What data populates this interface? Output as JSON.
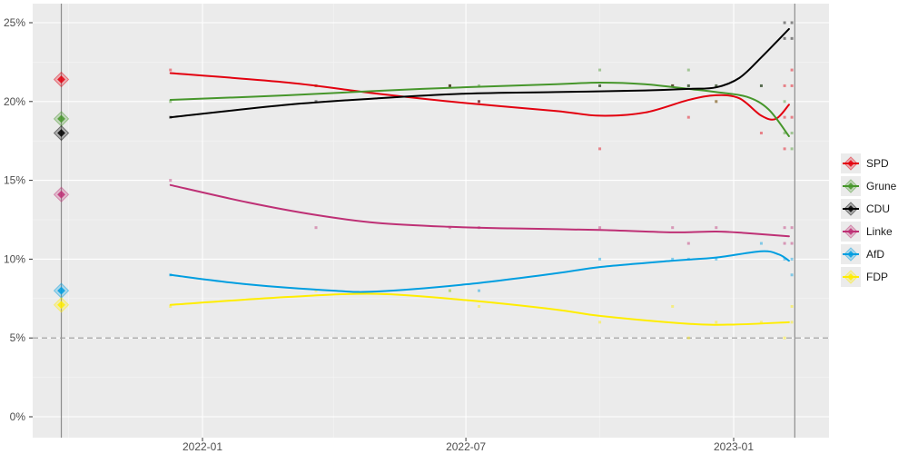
{
  "chart_data": {
    "type": "line",
    "title": "",
    "xlabel": "",
    "ylabel": "",
    "ylim": [
      0,
      26
    ],
    "xlim": [
      "2021-09-01",
      "2023-03-15"
    ],
    "y_ticks": [
      0,
      5,
      10,
      15,
      20,
      25
    ],
    "y_tick_labels": [
      "0%",
      "5%",
      "10%",
      "15%",
      "20%",
      "25%"
    ],
    "x_ticks": [
      "2022-01-01",
      "2022-07-01",
      "2023-01-01"
    ],
    "x_tick_labels": [
      "2022-01",
      "2022-07",
      "2023-01"
    ],
    "grid": true,
    "threshold": {
      "value": 5,
      "style": "dashed"
    },
    "reference_lines": [
      {
        "date": "2021-09-26"
      },
      {
        "date": "2023-02-12"
      }
    ],
    "legend": {
      "position": "right"
    },
    "series": [
      {
        "name": "SPD",
        "color": "#e3000f",
        "previous_result": 21.4,
        "trend": [
          [
            "2021-12-10",
            21.8
          ],
          [
            "2022-03-01",
            21.2
          ],
          [
            "2022-05-01",
            20.5
          ],
          [
            "2022-07-01",
            19.9
          ],
          [
            "2022-09-01",
            19.4
          ],
          [
            "2022-10-01",
            19.1
          ],
          [
            "2022-11-01",
            19.3
          ],
          [
            "2022-12-01",
            20.1
          ],
          [
            "2022-12-20",
            20.4
          ],
          [
            "2023-01-05",
            20.2
          ],
          [
            "2023-01-20",
            19.1
          ],
          [
            "2023-01-30",
            18.9
          ],
          [
            "2023-02-08",
            19.8
          ]
        ],
        "polls": [
          [
            "2021-12-10",
            22
          ],
          [
            "2022-03-20",
            21
          ],
          [
            "2022-06-20",
            21
          ],
          [
            "2022-07-10",
            20
          ],
          [
            "2022-10-01",
            17
          ],
          [
            "2022-11-20",
            21
          ],
          [
            "2022-12-01",
            19
          ],
          [
            "2022-12-20",
            20
          ],
          [
            "2023-01-20",
            18
          ],
          [
            "2023-02-05",
            17
          ],
          [
            "2023-02-05",
            19
          ],
          [
            "2023-02-05",
            21
          ],
          [
            "2023-02-10",
            22
          ],
          [
            "2023-02-10",
            21
          ],
          [
            "2023-02-10",
            19
          ]
        ]
      },
      {
        "name": "Grune",
        "color": "#46962b",
        "previous_result": 18.9,
        "trend": [
          [
            "2021-12-10",
            20.1
          ],
          [
            "2022-03-01",
            20.4
          ],
          [
            "2022-06-01",
            20.8
          ],
          [
            "2022-09-01",
            21.1
          ],
          [
            "2022-10-01",
            21.2
          ],
          [
            "2022-11-01",
            21.1
          ],
          [
            "2022-12-01",
            20.8
          ],
          [
            "2022-12-20",
            20.6
          ],
          [
            "2023-01-10",
            20.3
          ],
          [
            "2023-01-25",
            19.5
          ],
          [
            "2023-02-08",
            17.8
          ]
        ],
        "polls": [
          [
            "2021-12-10",
            20
          ],
          [
            "2022-03-20",
            21
          ],
          [
            "2022-06-20",
            21
          ],
          [
            "2022-07-10",
            21
          ],
          [
            "2022-10-01",
            22
          ],
          [
            "2022-10-01",
            21
          ],
          [
            "2022-11-20",
            21
          ],
          [
            "2022-12-01",
            22
          ],
          [
            "2022-12-01",
            21
          ],
          [
            "2022-12-20",
            21
          ],
          [
            "2022-12-20",
            20
          ],
          [
            "2023-01-20",
            21
          ],
          [
            "2023-02-05",
            20
          ],
          [
            "2023-02-05",
            18
          ],
          [
            "2023-02-10",
            18
          ],
          [
            "2023-02-10",
            17
          ]
        ]
      },
      {
        "name": "CDU",
        "color": "#000000",
        "previous_result": 18.0,
        "trend": [
          [
            "2021-12-10",
            19.0
          ],
          [
            "2022-03-01",
            19.8
          ],
          [
            "2022-05-01",
            20.2
          ],
          [
            "2022-07-01",
            20.5
          ],
          [
            "2022-09-01",
            20.6
          ],
          [
            "2022-11-01",
            20.7
          ],
          [
            "2022-12-01",
            20.8
          ],
          [
            "2022-12-20",
            20.9
          ],
          [
            "2023-01-05",
            21.5
          ],
          [
            "2023-01-20",
            22.8
          ],
          [
            "2023-02-08",
            24.6
          ]
        ],
        "polls": [
          [
            "2021-12-10",
            19
          ],
          [
            "2022-03-20",
            20
          ],
          [
            "2022-06-20",
            21
          ],
          [
            "2022-07-10",
            20
          ],
          [
            "2022-10-01",
            21
          ],
          [
            "2022-11-20",
            21
          ],
          [
            "2022-12-01",
            21
          ],
          [
            "2022-12-20",
            21
          ],
          [
            "2023-01-20",
            21
          ],
          [
            "2023-02-05",
            25
          ],
          [
            "2023-02-05",
            24
          ],
          [
            "2023-02-10",
            25
          ],
          [
            "2023-02-10",
            24
          ]
        ]
      },
      {
        "name": "Linke",
        "color": "#be3075",
        "previous_result": 14.1,
        "trend": [
          [
            "2021-12-10",
            14.7
          ],
          [
            "2022-02-01",
            13.6
          ],
          [
            "2022-03-20",
            12.8
          ],
          [
            "2022-05-01",
            12.3
          ],
          [
            "2022-06-20",
            12.05
          ],
          [
            "2022-08-01",
            11.95
          ],
          [
            "2022-10-01",
            11.85
          ],
          [
            "2022-11-20",
            11.7
          ],
          [
            "2022-12-20",
            11.75
          ],
          [
            "2023-01-10",
            11.65
          ],
          [
            "2023-02-08",
            11.45
          ]
        ],
        "polls": [
          [
            "2021-12-10",
            15
          ],
          [
            "2022-03-20",
            12
          ],
          [
            "2022-06-20",
            12
          ],
          [
            "2022-07-10",
            12
          ],
          [
            "2022-10-01",
            12
          ],
          [
            "2022-11-20",
            12
          ],
          [
            "2022-12-01",
            11
          ],
          [
            "2022-12-20",
            12
          ],
          [
            "2023-02-05",
            12
          ],
          [
            "2023-02-05",
            11
          ],
          [
            "2023-02-10",
            12
          ],
          [
            "2023-02-10",
            11
          ]
        ]
      },
      {
        "name": "AfD",
        "color": "#009ee0",
        "previous_result": 8.0,
        "trend": [
          [
            "2021-12-10",
            9.0
          ],
          [
            "2022-02-01",
            8.4
          ],
          [
            "2022-04-01",
            8.0
          ],
          [
            "2022-05-01",
            7.95
          ],
          [
            "2022-07-01",
            8.4
          ],
          [
            "2022-09-01",
            9.1
          ],
          [
            "2022-10-01",
            9.5
          ],
          [
            "2022-11-20",
            9.9
          ],
          [
            "2022-12-20",
            10.1
          ],
          [
            "2023-01-20",
            10.5
          ],
          [
            "2023-02-01",
            10.3
          ],
          [
            "2023-02-08",
            9.9
          ]
        ],
        "polls": [
          [
            "2021-12-10",
            9
          ],
          [
            "2022-06-20",
            8
          ],
          [
            "2022-07-10",
            8
          ],
          [
            "2022-10-01",
            10
          ],
          [
            "2022-11-20",
            10
          ],
          [
            "2022-12-01",
            10
          ],
          [
            "2022-12-20",
            10
          ],
          [
            "2023-01-20",
            11
          ],
          [
            "2023-02-05",
            10
          ],
          [
            "2023-02-10",
            9
          ],
          [
            "2023-02-10",
            10
          ]
        ]
      },
      {
        "name": "FDP",
        "color": "#ffed00",
        "previous_result": 7.1,
        "trend": [
          [
            "2021-12-10",
            7.1
          ],
          [
            "2022-03-01",
            7.6
          ],
          [
            "2022-05-01",
            7.8
          ],
          [
            "2022-07-01",
            7.4
          ],
          [
            "2022-09-01",
            6.8
          ],
          [
            "2022-10-01",
            6.4
          ],
          [
            "2022-12-01",
            5.9
          ],
          [
            "2023-01-01",
            5.85
          ],
          [
            "2023-02-08",
            6.0
          ]
        ],
        "polls": [
          [
            "2021-12-10",
            7
          ],
          [
            "2022-03-20",
            8
          ],
          [
            "2022-06-20",
            8
          ],
          [
            "2022-07-10",
            7
          ],
          [
            "2022-10-01",
            6
          ],
          [
            "2022-11-20",
            7
          ],
          [
            "2022-12-01",
            5
          ],
          [
            "2022-12-20",
            6
          ],
          [
            "2023-01-20",
            6
          ],
          [
            "2023-02-05",
            5
          ],
          [
            "2023-02-10",
            6
          ],
          [
            "2023-02-10",
            7
          ]
        ]
      }
    ]
  }
}
